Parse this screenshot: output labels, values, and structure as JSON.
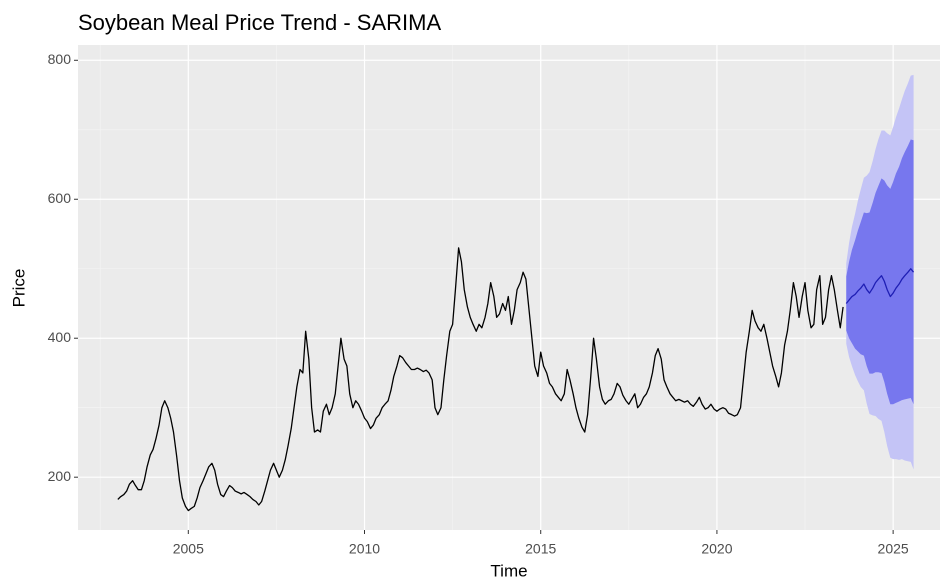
{
  "chart_data": {
    "type": "line",
    "title": "Soybean Meal Price Trend - SARIMA",
    "x_label": "Time",
    "y_label": "Price",
    "xlim": [
      2001.87,
      2026.33
    ],
    "ylim": [
      124,
      822
    ],
    "xticks": [
      2005,
      2010,
      2015,
      2020,
      2025
    ],
    "yticks": [
      200,
      400,
      600,
      800
    ],
    "x_minor_ticks": [
      2002.5,
      2007.5,
      2012.5,
      2017.5,
      2022.5
    ],
    "y_minor_ticks": [
      300,
      500,
      700
    ],
    "grid": true,
    "background": "#ebebeb",
    "bands": [
      {
        "color": "#c4c4f6",
        "x": [
          2023.67,
          2023.75,
          2023.83,
          2023.92,
          2024.0,
          2024.08,
          2024.17,
          2024.25,
          2024.33,
          2024.42,
          2024.5,
          2024.58,
          2024.67,
          2024.75,
          2024.83,
          2024.92,
          2025.0,
          2025.08,
          2025.17,
          2025.25,
          2025.33,
          2025.42,
          2025.5,
          2025.58
        ],
        "lower": [
          392,
          373,
          360,
          347,
          338,
          330,
          325,
          306,
          291,
          289,
          288,
          284,
          281,
          265,
          245,
          228,
          226,
          226,
          225,
          226,
          224,
          223,
          222,
          211
        ],
        "upper": [
          508,
          537,
          560,
          579,
          598,
          614,
          631,
          634,
          639,
          655,
          672,
          686,
          699,
          699,
          695,
          692,
          704,
          718,
          731,
          744,
          756,
          767,
          778,
          779
        ]
      },
      {
        "color": "#7777ee",
        "x": [
          2023.67,
          2023.75,
          2023.83,
          2023.92,
          2024.0,
          2024.08,
          2024.17,
          2024.25,
          2024.33,
          2024.42,
          2024.5,
          2024.58,
          2024.67,
          2024.75,
          2024.83,
          2024.92,
          2025.0,
          2025.08,
          2025.17,
          2025.25,
          2025.33,
          2025.42,
          2025.5,
          2025.58
        ],
        "lower": [
          411,
          400,
          393,
          385,
          381,
          377,
          375,
          360,
          349,
          349,
          351,
          351,
          350,
          337,
          320,
          305,
          305,
          307,
          309,
          311,
          312,
          313,
          314,
          305
        ],
        "upper": [
          489,
          510,
          527,
          541,
          555,
          567,
          581,
          580,
          581,
          595,
          609,
          619,
          630,
          627,
          620,
          615,
          625,
          637,
          647,
          659,
          668,
          677,
          686,
          685
        ]
      }
    ],
    "series": [
      {
        "color": "#000000",
        "x": [
          2003.0,
          2003.08,
          2003.17,
          2003.25,
          2003.33,
          2003.42,
          2003.5,
          2003.58,
          2003.67,
          2003.75,
          2003.83,
          2003.92,
          2004.0,
          2004.08,
          2004.17,
          2004.25,
          2004.33,
          2004.42,
          2004.5,
          2004.58,
          2004.67,
          2004.75,
          2004.83,
          2004.92,
          2005.0,
          2005.08,
          2005.17,
          2005.25,
          2005.33,
          2005.42,
          2005.5,
          2005.58,
          2005.67,
          2005.75,
          2005.83,
          2005.92,
          2006.0,
          2006.08,
          2006.17,
          2006.25,
          2006.33,
          2006.42,
          2006.5,
          2006.58,
          2006.67,
          2006.75,
          2006.83,
          2006.92,
          2007.0,
          2007.08,
          2007.17,
          2007.25,
          2007.33,
          2007.42,
          2007.5,
          2007.58,
          2007.67,
          2007.75,
          2007.83,
          2007.92,
          2008.0,
          2008.08,
          2008.17,
          2008.25,
          2008.33,
          2008.42,
          2008.5,
          2008.58,
          2008.67,
          2008.75,
          2008.83,
          2008.92,
          2009.0,
          2009.08,
          2009.17,
          2009.25,
          2009.33,
          2009.42,
          2009.5,
          2009.58,
          2009.67,
          2009.75,
          2009.83,
          2009.92,
          2010.0,
          2010.08,
          2010.17,
          2010.25,
          2010.33,
          2010.42,
          2010.5,
          2010.58,
          2010.67,
          2010.75,
          2010.83,
          2010.92,
          2011.0,
          2011.08,
          2011.17,
          2011.25,
          2011.33,
          2011.42,
          2011.5,
          2011.58,
          2011.67,
          2011.75,
          2011.83,
          2011.92,
          2012.0,
          2012.08,
          2012.17,
          2012.25,
          2012.33,
          2012.42,
          2012.5,
          2012.58,
          2012.67,
          2012.75,
          2012.83,
          2012.92,
          2013.0,
          2013.08,
          2013.17,
          2013.25,
          2013.33,
          2013.42,
          2013.5,
          2013.58,
          2013.67,
          2013.75,
          2013.83,
          2013.92,
          2014.0,
          2014.08,
          2014.17,
          2014.25,
          2014.33,
          2014.42,
          2014.5,
          2014.58,
          2014.67,
          2014.75,
          2014.83,
          2014.92,
          2015.0,
          2015.08,
          2015.17,
          2015.25,
          2015.33,
          2015.42,
          2015.5,
          2015.58,
          2015.67,
          2015.75,
          2015.83,
          2015.92,
          2016.0,
          2016.08,
          2016.17,
          2016.25,
          2016.33,
          2016.42,
          2016.5,
          2016.58,
          2016.67,
          2016.75,
          2016.83,
          2016.92,
          2017.0,
          2017.08,
          2017.17,
          2017.25,
          2017.33,
          2017.42,
          2017.5,
          2017.58,
          2017.67,
          2017.75,
          2017.83,
          2017.92,
          2018.0,
          2018.08,
          2018.17,
          2018.25,
          2018.33,
          2018.42,
          2018.5,
          2018.58,
          2018.67,
          2018.75,
          2018.83,
          2018.92,
          2019.0,
          2019.08,
          2019.17,
          2019.25,
          2019.33,
          2019.42,
          2019.5,
          2019.58,
          2019.67,
          2019.75,
          2019.83,
          2019.92,
          2020.0,
          2020.08,
          2020.17,
          2020.25,
          2020.33,
          2020.42,
          2020.5,
          2020.58,
          2020.67,
          2020.75,
          2020.83,
          2020.92,
          2021.0,
          2021.08,
          2021.17,
          2021.25,
          2021.33,
          2021.42,
          2021.5,
          2021.58,
          2021.67,
          2021.75,
          2021.83,
          2021.92,
          2022.0,
          2022.08,
          2022.17,
          2022.25,
          2022.33,
          2022.42,
          2022.5,
          2022.58,
          2022.67,
          2022.75,
          2022.83,
          2022.92,
          2023.0,
          2023.08,
          2023.17,
          2023.25,
          2023.33,
          2023.42,
          2023.5,
          2023.58
        ],
        "values": [
          168,
          172,
          175,
          180,
          190,
          195,
          188,
          182,
          182,
          195,
          215,
          232,
          240,
          255,
          275,
          300,
          310,
          300,
          285,
          265,
          230,
          195,
          170,
          158,
          152,
          155,
          158,
          170,
          185,
          195,
          205,
          215,
          220,
          210,
          190,
          175,
          172,
          180,
          188,
          185,
          180,
          178,
          176,
          178,
          175,
          172,
          168,
          165,
          160,
          165,
          180,
          195,
          210,
          220,
          210,
          200,
          210,
          225,
          245,
          270,
          300,
          330,
          355,
          350,
          410,
          370,
          300,
          265,
          268,
          265,
          295,
          305,
          290,
          300,
          320,
          360,
          400,
          370,
          360,
          320,
          300,
          310,
          305,
          295,
          285,
          280,
          270,
          275,
          285,
          290,
          300,
          305,
          310,
          325,
          345,
          360,
          375,
          372,
          365,
          360,
          355,
          355,
          357,
          355,
          352,
          354,
          350,
          340,
          300,
          290,
          300,
          340,
          375,
          410,
          420,
          470,
          530,
          510,
          470,
          445,
          430,
          420,
          410,
          420,
          415,
          430,
          450,
          480,
          460,
          430,
          435,
          450,
          440,
          460,
          420,
          440,
          470,
          480,
          495,
          485,
          440,
          400,
          360,
          345,
          380,
          360,
          350,
          335,
          330,
          320,
          315,
          310,
          320,
          355,
          340,
          320,
          300,
          285,
          272,
          265,
          290,
          345,
          400,
          370,
          330,
          312,
          305,
          310,
          312,
          320,
          335,
          330,
          318,
          310,
          305,
          312,
          320,
          300,
          305,
          315,
          320,
          330,
          350,
          375,
          385,
          370,
          340,
          330,
          320,
          315,
          310,
          312,
          310,
          308,
          310,
          305,
          302,
          308,
          315,
          305,
          298,
          300,
          305,
          298,
          295,
          298,
          300,
          298,
          292,
          290,
          288,
          290,
          300,
          340,
          380,
          410,
          440,
          425,
          415,
          410,
          420,
          400,
          380,
          360,
          345,
          330,
          350,
          390,
          410,
          440,
          480,
          460,
          430,
          460,
          480,
          440,
          415,
          420,
          470,
          490,
          420,
          430,
          470,
          490,
          470,
          440,
          415,
          445
        ]
      },
      {
        "color": "#1f1fb4",
        "x": [
          2023.67,
          2023.75,
          2023.83,
          2023.92,
          2024.0,
          2024.08,
          2024.17,
          2024.25,
          2024.33,
          2024.42,
          2024.5,
          2024.58,
          2024.67,
          2024.75,
          2024.83,
          2024.92,
          2025.0,
          2025.08,
          2025.17,
          2025.25,
          2025.33,
          2025.42,
          2025.5,
          2025.58
        ],
        "values": [
          450,
          455,
          460,
          463,
          468,
          472,
          478,
          470,
          465,
          472,
          480,
          485,
          490,
          482,
          470,
          460,
          465,
          472,
          478,
          485,
          490,
          495,
          500,
          495
        ]
      }
    ]
  }
}
